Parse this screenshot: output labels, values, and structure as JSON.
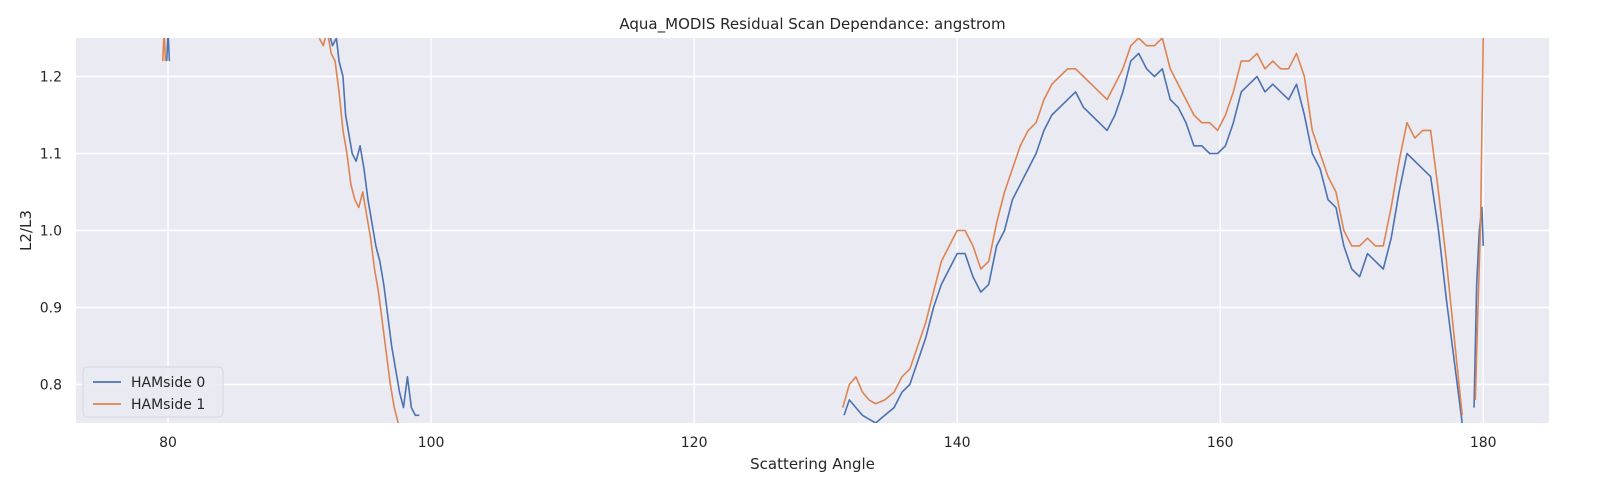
{
  "chart_data": {
    "type": "line",
    "title": "Aqua_MODIS Residual Scan Dependance: angstrom",
    "xlabel": "Scattering Angle",
    "ylabel": "L2/L3",
    "xlim": [
      73,
      185
    ],
    "ylim": [
      0.75,
      1.25
    ],
    "xticks": [
      80,
      100,
      120,
      140,
      160,
      180
    ],
    "yticks": [
      0.8,
      0.9,
      1.0,
      1.1,
      1.2
    ],
    "grid": true,
    "legend_position": "lower-left",
    "background_color": "#eaeaf2",
    "grid_color": "#ffffff",
    "series": [
      {
        "name": "HAMside 0",
        "color": "#4c72b0",
        "segments": [
          [
            [
              79.9,
              1.22
            ],
            [
              80.0,
              1.26
            ],
            [
              80.1,
              1.22
            ]
          ],
          [
            [
              92.2,
              1.26
            ],
            [
              92.5,
              1.24
            ],
            [
              92.8,
              1.25
            ],
            [
              93.0,
              1.22
            ],
            [
              93.3,
              1.2
            ],
            [
              93.5,
              1.15
            ],
            [
              93.8,
              1.12
            ],
            [
              94.0,
              1.1
            ],
            [
              94.3,
              1.09
            ],
            [
              94.6,
              1.11
            ],
            [
              94.9,
              1.08
            ],
            [
              95.2,
              1.04
            ],
            [
              95.5,
              1.01
            ],
            [
              95.8,
              0.98
            ],
            [
              96.1,
              0.96
            ],
            [
              96.4,
              0.93
            ],
            [
              96.7,
              0.89
            ],
            [
              97.0,
              0.85
            ],
            [
              97.3,
              0.82
            ],
            [
              97.6,
              0.79
            ],
            [
              97.9,
              0.77
            ],
            [
              98.2,
              0.81
            ],
            [
              98.5,
              0.77
            ],
            [
              98.8,
              0.76
            ],
            [
              99.1,
              0.76
            ]
          ],
          [
            [
              131.4,
              0.76
            ],
            [
              131.8,
              0.78
            ],
            [
              132.3,
              0.77
            ],
            [
              132.8,
              0.76
            ],
            [
              133.3,
              0.755
            ],
            [
              133.8,
              0.75
            ],
            [
              134.5,
              0.76
            ],
            [
              135.2,
              0.77
            ],
            [
              135.8,
              0.79
            ],
            [
              136.4,
              0.8
            ],
            [
              137.0,
              0.83
            ],
            [
              137.6,
              0.86
            ],
            [
              138.2,
              0.9
            ],
            [
              138.8,
              0.93
            ],
            [
              139.4,
              0.95
            ],
            [
              140.0,
              0.97
            ],
            [
              140.6,
              0.97
            ],
            [
              141.2,
              0.94
            ],
            [
              141.8,
              0.92
            ],
            [
              142.4,
              0.93
            ],
            [
              143.0,
              0.98
            ],
            [
              143.6,
              1.0
            ],
            [
              144.2,
              1.04
            ],
            [
              144.8,
              1.06
            ],
            [
              145.4,
              1.08
            ],
            [
              146.0,
              1.1
            ],
            [
              146.6,
              1.13
            ],
            [
              147.2,
              1.15
            ],
            [
              147.8,
              1.16
            ],
            [
              148.4,
              1.17
            ],
            [
              149.0,
              1.18
            ],
            [
              149.6,
              1.16
            ],
            [
              150.2,
              1.15
            ],
            [
              150.8,
              1.14
            ],
            [
              151.4,
              1.13
            ],
            [
              152.0,
              1.15
            ],
            [
              152.6,
              1.18
            ],
            [
              153.2,
              1.22
            ],
            [
              153.8,
              1.23
            ],
            [
              154.4,
              1.21
            ],
            [
              155.0,
              1.2
            ],
            [
              155.6,
              1.21
            ],
            [
              156.2,
              1.17
            ],
            [
              156.8,
              1.16
            ],
            [
              157.4,
              1.14
            ],
            [
              158.0,
              1.11
            ],
            [
              158.6,
              1.11
            ],
            [
              159.2,
              1.1
            ],
            [
              159.8,
              1.1
            ],
            [
              160.4,
              1.11
            ],
            [
              161.0,
              1.14
            ],
            [
              161.6,
              1.18
            ],
            [
              162.2,
              1.19
            ],
            [
              162.8,
              1.2
            ],
            [
              163.4,
              1.18
            ],
            [
              164.0,
              1.19
            ],
            [
              164.6,
              1.18
            ],
            [
              165.2,
              1.17
            ],
            [
              165.8,
              1.19
            ],
            [
              166.4,
              1.15
            ],
            [
              167.0,
              1.1
            ],
            [
              167.6,
              1.08
            ],
            [
              168.2,
              1.04
            ],
            [
              168.8,
              1.03
            ],
            [
              169.4,
              0.98
            ],
            [
              170.0,
              0.95
            ],
            [
              170.6,
              0.94
            ],
            [
              171.2,
              0.97
            ],
            [
              171.8,
              0.96
            ],
            [
              172.4,
              0.95
            ],
            [
              173.0,
              0.99
            ],
            [
              173.6,
              1.05
            ],
            [
              174.2,
              1.1
            ],
            [
              174.8,
              1.09
            ],
            [
              175.4,
              1.08
            ],
            [
              176.0,
              1.07
            ],
            [
              176.6,
              1.0
            ],
            [
              177.2,
              0.91
            ],
            [
              177.8,
              0.83
            ],
            [
              178.4,
              0.75
            ]
          ],
          [
            [
              179.3,
              0.77
            ],
            [
              179.5,
              0.93
            ],
            [
              179.7,
              1.0
            ],
            [
              179.9,
              1.03
            ],
            [
              180.0,
              0.98
            ]
          ]
        ]
      },
      {
        "name": "HAMside 1",
        "color": "#dd8452",
        "segments": [
          [
            [
              79.6,
              1.22
            ],
            [
              79.7,
              1.26
            ],
            [
              79.8,
              1.22
            ]
          ],
          [
            [
              91.5,
              1.25
            ],
            [
              91.8,
              1.24
            ],
            [
              92.1,
              1.26
            ],
            [
              92.4,
              1.23
            ],
            [
              92.7,
              1.22
            ],
            [
              93.0,
              1.18
            ],
            [
              93.3,
              1.13
            ],
            [
              93.6,
              1.1
            ],
            [
              93.9,
              1.06
            ],
            [
              94.2,
              1.04
            ],
            [
              94.5,
              1.03
            ],
            [
              94.8,
              1.05
            ],
            [
              95.1,
              1.02
            ],
            [
              95.4,
              0.99
            ],
            [
              95.7,
              0.95
            ],
            [
              96.0,
              0.92
            ],
            [
              96.3,
              0.88
            ],
            [
              96.6,
              0.84
            ],
            [
              96.9,
              0.8
            ],
            [
              97.2,
              0.77
            ],
            [
              97.5,
              0.75
            ]
          ],
          [
            [
              131.3,
              0.77
            ],
            [
              131.8,
              0.8
            ],
            [
              132.3,
              0.81
            ],
            [
              132.8,
              0.79
            ],
            [
              133.3,
              0.78
            ],
            [
              133.8,
              0.775
            ],
            [
              134.5,
              0.78
            ],
            [
              135.2,
              0.79
            ],
            [
              135.8,
              0.81
            ],
            [
              136.4,
              0.82
            ],
            [
              137.0,
              0.85
            ],
            [
              137.6,
              0.88
            ],
            [
              138.2,
              0.92
            ],
            [
              138.8,
              0.96
            ],
            [
              139.4,
              0.98
            ],
            [
              140.0,
              1.0
            ],
            [
              140.6,
              1.0
            ],
            [
              141.2,
              0.98
            ],
            [
              141.8,
              0.95
            ],
            [
              142.4,
              0.96
            ],
            [
              143.0,
              1.01
            ],
            [
              143.6,
              1.05
            ],
            [
              144.2,
              1.08
            ],
            [
              144.8,
              1.11
            ],
            [
              145.4,
              1.13
            ],
            [
              146.0,
              1.14
            ],
            [
              146.6,
              1.17
            ],
            [
              147.2,
              1.19
            ],
            [
              147.8,
              1.2
            ],
            [
              148.4,
              1.21
            ],
            [
              149.0,
              1.21
            ],
            [
              149.6,
              1.2
            ],
            [
              150.2,
              1.19
            ],
            [
              150.8,
              1.18
            ],
            [
              151.4,
              1.17
            ],
            [
              152.0,
              1.19
            ],
            [
              152.6,
              1.21
            ],
            [
              153.2,
              1.24
            ],
            [
              153.8,
              1.25
            ],
            [
              154.4,
              1.24
            ],
            [
              155.0,
              1.24
            ],
            [
              155.6,
              1.25
            ],
            [
              156.2,
              1.21
            ],
            [
              156.8,
              1.19
            ],
            [
              157.4,
              1.17
            ],
            [
              158.0,
              1.15
            ],
            [
              158.6,
              1.14
            ],
            [
              159.2,
              1.14
            ],
            [
              159.8,
              1.13
            ],
            [
              160.4,
              1.15
            ],
            [
              161.0,
              1.18
            ],
            [
              161.6,
              1.22
            ],
            [
              162.2,
              1.22
            ],
            [
              162.8,
              1.23
            ],
            [
              163.4,
              1.21
            ],
            [
              164.0,
              1.22
            ],
            [
              164.6,
              1.21
            ],
            [
              165.2,
              1.21
            ],
            [
              165.8,
              1.23
            ],
            [
              166.4,
              1.2
            ],
            [
              167.0,
              1.13
            ],
            [
              167.6,
              1.1
            ],
            [
              168.2,
              1.07
            ],
            [
              168.8,
              1.05
            ],
            [
              169.4,
              1.0
            ],
            [
              170.0,
              0.98
            ],
            [
              170.6,
              0.98
            ],
            [
              171.2,
              0.99
            ],
            [
              171.8,
              0.98
            ],
            [
              172.4,
              0.98
            ],
            [
              173.0,
              1.03
            ],
            [
              173.6,
              1.09
            ],
            [
              174.2,
              1.14
            ],
            [
              174.8,
              1.12
            ],
            [
              175.4,
              1.13
            ],
            [
              176.0,
              1.13
            ],
            [
              176.6,
              1.05
            ],
            [
              177.2,
              0.96
            ],
            [
              177.8,
              0.86
            ],
            [
              178.4,
              0.76
            ]
          ],
          [
            [
              179.4,
              0.78
            ],
            [
              179.6,
              0.9
            ],
            [
              179.8,
              1.01
            ],
            [
              180.0,
              1.25
            ]
          ]
        ]
      }
    ]
  }
}
